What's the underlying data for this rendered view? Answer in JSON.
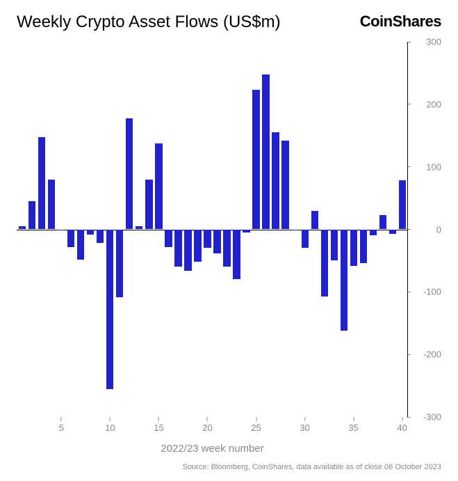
{
  "header": {
    "title": "Weekly Crypto Asset Flows (US$m)",
    "brand": "CoinShares"
  },
  "chart": {
    "type": "bar",
    "xlabel": "2022/23 week number",
    "ylim": [
      -300,
      300
    ],
    "yticks": [
      -300,
      -200,
      -100,
      0,
      100,
      200,
      300
    ],
    "xticks": [
      5,
      10,
      15,
      20,
      25,
      30,
      35,
      40
    ],
    "x_start": 1,
    "x_end": 40,
    "bar_color": "#2222cc",
    "bar_width": 0.72,
    "background_color": "#ffffff",
    "axis_color": "#000000",
    "tick_color": "#888888",
    "values": [
      5,
      45,
      148,
      80,
      -2,
      -28,
      -48,
      -8,
      -22,
      -255,
      -108,
      178,
      5,
      80,
      138,
      -28,
      -60,
      -66,
      -52,
      -30,
      -38,
      -60,
      -80,
      -5,
      223,
      248,
      155,
      142,
      -2,
      -30,
      29,
      -107,
      -50,
      -162,
      -58,
      -54,
      -10,
      23,
      -7,
      78
    ],
    "title_fontsize": 24,
    "tick_fontsize": 13,
    "label_fontsize": 15
  },
  "source": "Source: Bloomberg, CoinShares, data available as of close 06 October 2023"
}
